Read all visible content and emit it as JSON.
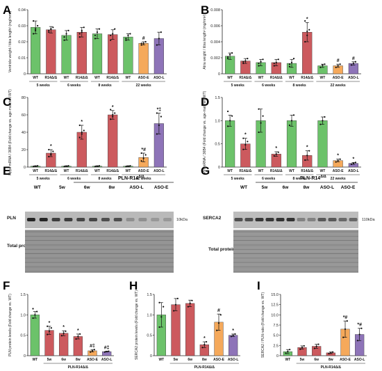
{
  "colors": {
    "wt": "#6cc26a",
    "r14": "#cc5a5e",
    "asoe": "#f5a95b",
    "asol": "#8e74b8",
    "point": "#111111",
    "err": "#111111"
  },
  "blots": {
    "E": {
      "label": "E",
      "header": "PLN-R14",
      "header_sup": "Δ/Δ",
      "lanes": [
        "WT",
        "5w",
        "6w",
        "8w",
        "ASO-L",
        "ASO-E"
      ],
      "bands": [
        "PLN",
        "Total protein"
      ],
      "mw": "10kDa"
    },
    "G": {
      "label": "G",
      "header": "PLN-R14",
      "header_sup": "Δ/Δ",
      "lanes": [
        "WT",
        "5w",
        "6w",
        "8w",
        "ASO-L",
        "ASO-E"
      ],
      "bands": [
        "SERCA2",
        "Total protein"
      ],
      "mw": "110kDa"
    }
  },
  "chart_data": [
    {
      "id": "A",
      "label": "A",
      "type": "bar",
      "ylabel": "Ventricle weight / tibia length² (mg/mm²)",
      "ylim": [
        0,
        0.04
      ],
      "yticks": [
        0,
        0.01,
        0.02,
        0.03,
        0.04
      ],
      "yticklabels": [
        "0",
        "0.01",
        "0.02",
        "0.03",
        "0.04"
      ],
      "bars": [
        {
          "cat": "WT",
          "group": "wt",
          "value": 0.029,
          "err": 0.004,
          "sig": "",
          "points": [
            0.025,
            0.027,
            0.03,
            0.033,
            0.028
          ]
        },
        {
          "cat": "R14Δ/Δ",
          "group": "r14",
          "value": 0.0275,
          "err": 0.002,
          "sig": "",
          "points": [
            0.026,
            0.028,
            0.029,
            0.027,
            0.028
          ]
        },
        {
          "cat": "WT",
          "group": "wt",
          "value": 0.024,
          "err": 0.003,
          "sig": "",
          "points": [
            0.021,
            0.025,
            0.027,
            0.023
          ]
        },
        {
          "cat": "R14Δ/Δ",
          "group": "r14",
          "value": 0.026,
          "err": 0.003,
          "sig": "",
          "points": [
            0.023,
            0.027,
            0.029,
            0.025,
            0.026
          ]
        },
        {
          "cat": "WT",
          "group": "wt",
          "value": 0.025,
          "err": 0.003,
          "sig": "",
          "points": [
            0.022,
            0.026,
            0.028,
            0.024
          ]
        },
        {
          "cat": "R14Δ/Δ",
          "group": "r14",
          "value": 0.0245,
          "err": 0.003,
          "sig": "",
          "points": [
            0.021,
            0.025,
            0.028,
            0.024
          ]
        },
        {
          "cat": "WT",
          "group": "wt",
          "value": 0.023,
          "err": 0.002,
          "sig": "",
          "points": [
            0.021,
            0.024,
            0.025,
            0.022
          ]
        },
        {
          "cat": "ASO-E",
          "group": "asoe",
          "value": 0.019,
          "err": 0.001,
          "sig": "#",
          "points": [
            0.018,
            0.019,
            0.02,
            0.019
          ]
        },
        {
          "cat": "ASO-L",
          "group": "asol",
          "value": 0.022,
          "err": 0.004,
          "sig": "",
          "points": [
            0.018,
            0.022,
            0.026
          ]
        }
      ],
      "groups": [
        {
          "label": "5 weeks",
          "span": [
            0,
            1
          ]
        },
        {
          "label": "6 weeks",
          "span": [
            2,
            3
          ]
        },
        {
          "label": "8 weeks",
          "span": [
            4,
            5
          ]
        },
        {
          "label": "22 weeks",
          "span": [
            6,
            8
          ]
        }
      ]
    },
    {
      "id": "B",
      "label": "B",
      "type": "bar",
      "ylabel": "Atria weight / tibia length² (mg/mm²)",
      "ylim": [
        0,
        0.008
      ],
      "yticks": [
        0,
        0.002,
        0.004,
        0.006,
        0.008
      ],
      "yticklabels": [
        "0",
        "0.002",
        "0.004",
        "0.006",
        "0.008"
      ],
      "bars": [
        {
          "cat": "WT",
          "group": "wt",
          "value": 0.0022,
          "err": 0.0004,
          "sig": "",
          "points": [
            0.0019,
            0.0024,
            0.0026,
            0.0021
          ]
        },
        {
          "cat": "R14Δ/Δ",
          "group": "r14",
          "value": 0.0016,
          "err": 0.0003,
          "sig": "",
          "points": [
            0.0013,
            0.0016,
            0.0019,
            0.0015
          ]
        },
        {
          "cat": "WT",
          "group": "wt",
          "value": 0.0014,
          "err": 0.0004,
          "sig": "",
          "points": [
            0.001,
            0.0015,
            0.0018,
            0.0013
          ]
        },
        {
          "cat": "R14Δ/Δ",
          "group": "r14",
          "value": 0.0014,
          "err": 0.0004,
          "sig": "",
          "points": [
            0.001,
            0.0014,
            0.0018,
            0.0013
          ]
        },
        {
          "cat": "WT",
          "group": "wt",
          "value": 0.0013,
          "err": 0.0005,
          "sig": "",
          "points": [
            0.0009,
            0.0014,
            0.0019,
            0.0012
          ]
        },
        {
          "cat": "R14Δ/Δ",
          "group": "r14",
          "value": 0.0052,
          "err": 0.0012,
          "sig": "*",
          "points": [
            0.004,
            0.0048,
            0.0055,
            0.0066,
            0.0053
          ]
        },
        {
          "cat": "WT",
          "group": "wt",
          "value": 0.001,
          "err": 0.0002,
          "sig": "",
          "points": [
            0.0008,
            0.0011,
            0.0012
          ]
        },
        {
          "cat": "ASO-E",
          "group": "asoe",
          "value": 0.001,
          "err": 0.0002,
          "sig": "#",
          "points": [
            0.0008,
            0.001,
            0.0012
          ]
        },
        {
          "cat": "ASO-L",
          "group": "asol",
          "value": 0.0013,
          "err": 0.0002,
          "sig": "#",
          "points": [
            0.0011,
            0.0013,
            0.0015
          ]
        }
      ],
      "groups": [
        {
          "label": "5 weeks",
          "span": [
            0,
            1
          ]
        },
        {
          "label": "6 weeks",
          "span": [
            2,
            3
          ]
        },
        {
          "label": "8 weeks",
          "span": [
            4,
            5
          ]
        },
        {
          "label": "22 weeks",
          "span": [
            6,
            8
          ]
        }
      ]
    },
    {
      "id": "C",
      "label": "C",
      "type": "bar",
      "ylabel": "Nppa mRNA / 36B4 (Fold change vs. age-matched WT)",
      "ylim": [
        0,
        80
      ],
      "yticks": [
        0,
        20,
        40,
        60,
        80
      ],
      "yticklabels": [
        "0",
        "20",
        "40",
        "60",
        "80"
      ],
      "bars": [
        {
          "cat": "WT",
          "group": "wt",
          "value": 1,
          "err": 0.5,
          "sig": "",
          "points": [
            0.6,
            1,
            1.4
          ]
        },
        {
          "cat": "R14Δ/Δ",
          "group": "r14",
          "value": 16,
          "err": 4,
          "sig": "*",
          "points": [
            12,
            15,
            18,
            20,
            14
          ]
        },
        {
          "cat": "WT",
          "group": "wt",
          "value": 1,
          "err": 0.5,
          "sig": "",
          "points": [
            0.6,
            1,
            1.4
          ]
        },
        {
          "cat": "R14Δ/Δ",
          "group": "r14",
          "value": 40,
          "err": 8,
          "sig": "*",
          "points": [
            34,
            38,
            42,
            48,
            40
          ]
        },
        {
          "cat": "WT",
          "group": "wt",
          "value": 1,
          "err": 0.5,
          "sig": "",
          "points": [
            0.6,
            1,
            1.4
          ]
        },
        {
          "cat": "R14Δ/Δ",
          "group": "r14",
          "value": 60,
          "err": 5,
          "sig": "*",
          "points": [
            55,
            58,
            62,
            66,
            60
          ]
        },
        {
          "cat": "WT",
          "group": "wt",
          "value": 1,
          "err": 0.5,
          "sig": "",
          "points": [
            0.6,
            1,
            1.4
          ]
        },
        {
          "cat": "ASO-E",
          "group": "asoe",
          "value": 11,
          "err": 5,
          "sig": "*#",
          "points": [
            7,
            10,
            14,
            16
          ]
        },
        {
          "cat": "ASO-L",
          "group": "asol",
          "value": 50,
          "err": 12,
          "sig": "*‡",
          "points": [
            38,
            48,
            58,
            62
          ]
        }
      ],
      "groups": [
        {
          "label": "5 weeks",
          "span": [
            0,
            1
          ]
        },
        {
          "label": "6 weeks",
          "span": [
            2,
            3
          ]
        },
        {
          "label": "8 weeks",
          "span": [
            4,
            5
          ]
        },
        {
          "label": "22 weeks",
          "span": [
            6,
            8
          ]
        }
      ]
    },
    {
      "id": "D",
      "label": "D",
      "type": "bar",
      "ylabel": "Pln mRNA / 36B4 (Fold change vs. age-matched WT)",
      "ylim": [
        0,
        1.5
      ],
      "yticks": [
        0,
        0.5,
        1.0,
        1.5
      ],
      "yticklabels": [
        "0",
        "0.5",
        "1.0",
        "1.5"
      ],
      "bars": [
        {
          "cat": "WT",
          "group": "wt",
          "value": 1.0,
          "err": 0.12,
          "sig": "",
          "points": [
            0.88,
            1.0,
            1.1,
            1.2
          ]
        },
        {
          "cat": "R14Δ/Δ",
          "group": "r14",
          "value": 0.5,
          "err": 0.12,
          "sig": "*",
          "points": [
            0.38,
            0.48,
            0.55,
            0.62
          ]
        },
        {
          "cat": "WT",
          "group": "wt",
          "value": 1.0,
          "err": 0.25,
          "sig": "",
          "points": [
            0.75,
            0.95,
            1.1,
            1.25
          ]
        },
        {
          "cat": "R14Δ/Δ",
          "group": "r14",
          "value": 0.28,
          "err": 0.05,
          "sig": "*",
          "points": [
            0.24,
            0.28,
            0.32
          ]
        },
        {
          "cat": "WT",
          "group": "wt",
          "value": 1.0,
          "err": 0.12,
          "sig": "",
          "points": [
            0.9,
            1.0,
            1.12
          ]
        },
        {
          "cat": "R14Δ/Δ",
          "group": "r14",
          "value": 0.25,
          "err": 0.1,
          "sig": "*",
          "points": [
            0.15,
            0.25,
            0.35
          ]
        },
        {
          "cat": "WT",
          "group": "wt",
          "value": 1.0,
          "err": 0.08,
          "sig": "",
          "points": [
            0.92,
            1.0,
            1.08
          ]
        },
        {
          "cat": "ASO-E",
          "group": "asoe",
          "value": 0.14,
          "err": 0.03,
          "sig": "*",
          "points": [
            0.11,
            0.14,
            0.17
          ]
        },
        {
          "cat": "ASO-L",
          "group": "asol",
          "value": 0.08,
          "err": 0.02,
          "sig": "*",
          "points": [
            0.06,
            0.08,
            0.1
          ]
        }
      ],
      "groups": [
        {
          "label": "5 weeks",
          "span": [
            0,
            1
          ]
        },
        {
          "label": "6 weeks",
          "span": [
            2,
            3
          ]
        },
        {
          "label": "8 weeks",
          "span": [
            4,
            5
          ]
        },
        {
          "label": "22 weeks",
          "span": [
            6,
            8
          ]
        }
      ]
    },
    {
      "id": "F",
      "label": "F",
      "type": "bar",
      "ylabel": "PLN protein levels (Fold change vs. WT)",
      "ylim": [
        0,
        1.5
      ],
      "yticks": [
        0,
        0.5,
        1.0,
        1.5
      ],
      "yticklabels": [
        "0",
        "0.5",
        "1.0",
        "1.5"
      ],
      "bars": [
        {
          "cat": "WT",
          "group": "wt",
          "value": 1.0,
          "err": 0.08,
          "sig": "",
          "points": [
            0.92,
            1.0,
            1.08,
            1.15
          ]
        },
        {
          "cat": "5w",
          "group": "r14",
          "value": 0.62,
          "err": 0.1,
          "sig": "*",
          "points": [
            0.52,
            0.6,
            0.68,
            0.72
          ]
        },
        {
          "cat": "6w",
          "group": "r14",
          "value": 0.55,
          "err": 0.06,
          "sig": "*",
          "points": [
            0.49,
            0.55,
            0.6
          ]
        },
        {
          "cat": "8w",
          "group": "r14",
          "value": 0.47,
          "err": 0.06,
          "sig": "*",
          "points": [
            0.41,
            0.47,
            0.53
          ]
        },
        {
          "cat": "ASO-E",
          "group": "asoe",
          "value": 0.12,
          "err": 0.03,
          "sig": "#‡",
          "points": [
            0.09,
            0.12,
            0.15
          ]
        },
        {
          "cat": "ASO-L",
          "group": "asol",
          "value": 0.1,
          "err": 0.01,
          "sig": "#‡",
          "points": [
            0.09,
            0.1,
            0.11
          ]
        }
      ],
      "groups": [
        {
          "label": "PLN-R14Δ/Δ",
          "span": [
            1,
            5
          ]
        }
      ]
    },
    {
      "id": "H",
      "label": "H",
      "type": "bar",
      "ylabel": "SERCA2 protein levels (Fold change vs. WT)",
      "ylim": [
        0,
        1.5
      ],
      "yticks": [
        0,
        0.5,
        1.0,
        1.5
      ],
      "yticklabels": [
        "0",
        "0.5",
        "1.0",
        "1.5"
      ],
      "bars": [
        {
          "cat": "WT",
          "group": "wt",
          "value": 1.0,
          "err": 0.3,
          "sig": "",
          "points": [
            0.7,
            0.95,
            1.2,
            1.3
          ]
        },
        {
          "cat": "5w",
          "group": "r14",
          "value": 1.25,
          "err": 0.15,
          "sig": "",
          "points": [
            1.1,
            1.25,
            1.4
          ]
        },
        {
          "cat": "6w",
          "group": "r14",
          "value": 1.28,
          "err": 0.08,
          "sig": "",
          "points": [
            1.2,
            1.28,
            1.35
          ]
        },
        {
          "cat": "8w",
          "group": "r14",
          "value": 0.27,
          "err": 0.07,
          "sig": "*",
          "points": [
            0.2,
            0.27,
            0.34
          ]
        },
        {
          "cat": "ASO-E",
          "group": "asoe",
          "value": 0.82,
          "err": 0.2,
          "sig": "#",
          "points": [
            0.62,
            0.8,
            1.0
          ]
        },
        {
          "cat": "ASO-L",
          "group": "asol",
          "value": 0.5,
          "err": 0.03,
          "sig": "*",
          "points": [
            0.47,
            0.5,
            0.53
          ]
        }
      ],
      "groups": [
        {
          "label": "PLN-R14Δ/Δ",
          "span": [
            1,
            5
          ]
        }
      ]
    },
    {
      "id": "I",
      "label": "I",
      "type": "bar",
      "ylabel": "SERCA2 / PLN ratio (Fold change vs. WT)",
      "ylim": [
        0,
        15
      ],
      "yticks": [
        0,
        2.5,
        5,
        7.5,
        10,
        12.5,
        15
      ],
      "yticklabels": [
        "0",
        "2.5",
        "5.0",
        "7.5",
        "10.0",
        "12.5",
        "15.0"
      ],
      "bars": [
        {
          "cat": "WT",
          "group": "wt",
          "value": 1.0,
          "err": 0.5,
          "sig": "",
          "points": [
            0.6,
            1.0,
            1.5
          ]
        },
        {
          "cat": "5w",
          "group": "r14",
          "value": 2.0,
          "err": 0.4,
          "sig": "",
          "points": [
            1.6,
            2.0,
            2.4
          ]
        },
        {
          "cat": "6w",
          "group": "r14",
          "value": 2.3,
          "err": 0.5,
          "sig": "",
          "points": [
            1.8,
            2.3,
            2.8
          ]
        },
        {
          "cat": "8w",
          "group": "r14",
          "value": 0.7,
          "err": 0.2,
          "sig": "",
          "points": [
            0.5,
            0.7,
            0.9
          ]
        },
        {
          "cat": "ASO-E",
          "group": "asoe",
          "value": 6.5,
          "err": 2.0,
          "sig": "*#",
          "points": [
            4.5,
            6.5,
            8.5
          ]
        },
        {
          "cat": "ASO-L",
          "group": "asol",
          "value": 5.2,
          "err": 1.5,
          "sig": "*#",
          "points": [
            3.7,
            5.2,
            6.7
          ]
        }
      ],
      "groups": [
        {
          "label": "PLN-R14Δ/Δ",
          "span": [
            1,
            5
          ]
        }
      ]
    }
  ]
}
